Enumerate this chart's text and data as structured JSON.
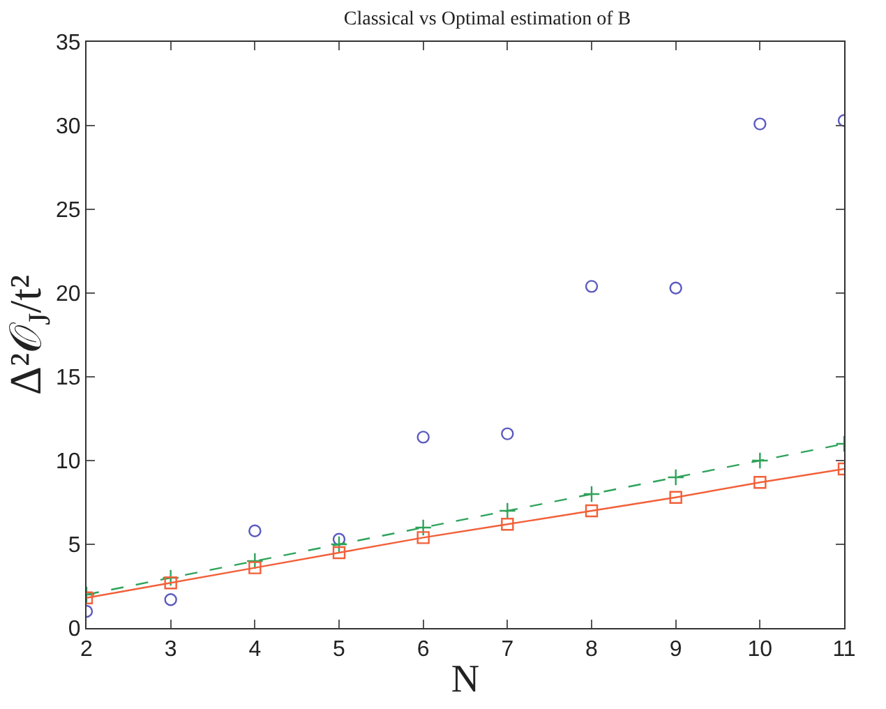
{
  "chart_data": {
    "type": "line",
    "title": "Classical vs Optimal estimation of B",
    "xlabel": "N",
    "ylabel": "Δ²𝒪$_{J}$/t²",
    "x": [
      2,
      3,
      4,
      5,
      6,
      7,
      8,
      9,
      10,
      11
    ],
    "series": [
      {
        "color": "#5a5ac0",
        "type": "scatter",
        "marker": "circle",
        "values": [
          1.0,
          1.7,
          5.8,
          5.3,
          11.4,
          11.6,
          20.4,
          20.3,
          30.1,
          30.3
        ]
      },
      {
        "color": "#2ea35a",
        "marker": "cross",
        "line_style": "dashed",
        "values": [
          2,
          3,
          4,
          5,
          6,
          7,
          8,
          9,
          10,
          11
        ]
      },
      {
        "color": "#f2603a",
        "marker": "square",
        "line_style": "solid",
        "values": [
          1.8,
          2.7,
          3.6,
          4.5,
          5.4,
          6.2,
          7.0,
          7.8,
          8.7,
          9.5
        ]
      }
    ],
    "xlim": [
      2,
      11
    ],
    "xticks": [
      2,
      3,
      4,
      5,
      6,
      7,
      8,
      9,
      10,
      11
    ],
    "ylim": [
      0,
      35
    ],
    "yticks": [
      0,
      5,
      10,
      15,
      20,
      25,
      30,
      35
    ]
  }
}
